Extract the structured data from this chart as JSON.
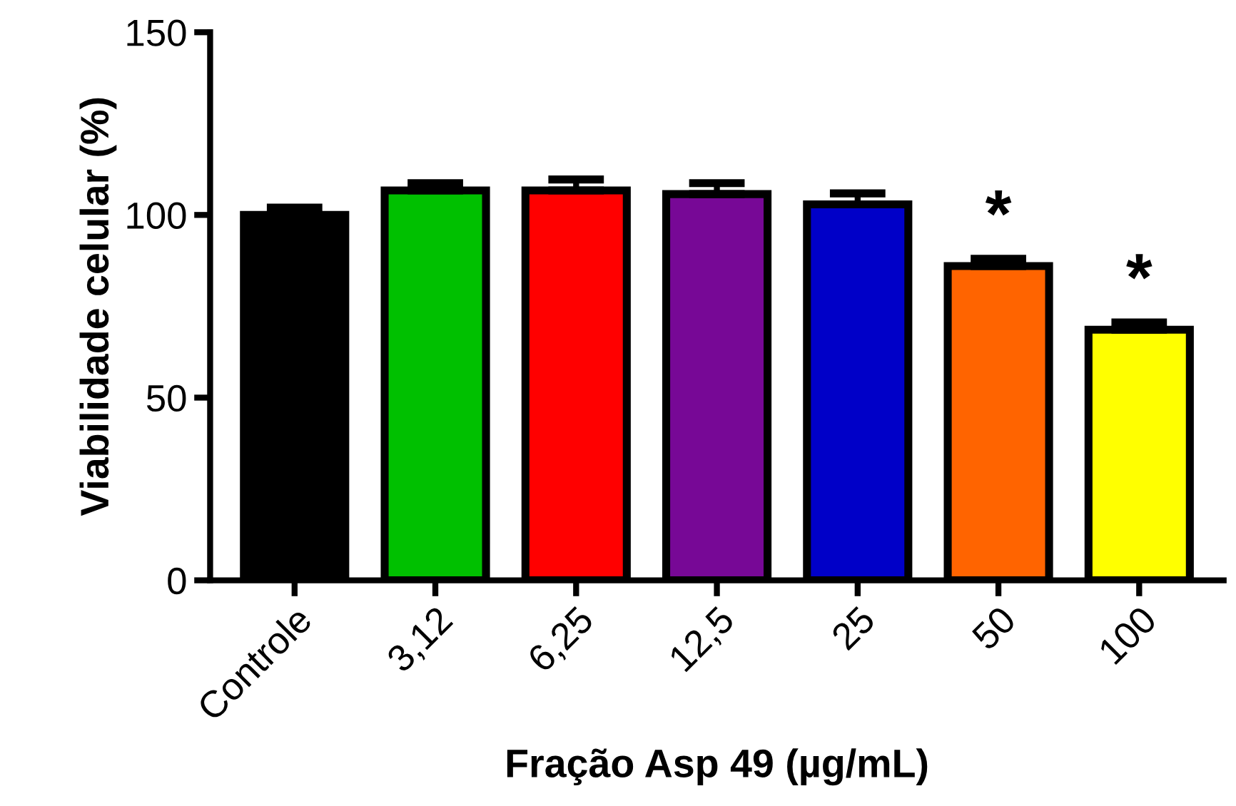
{
  "chart_data": {
    "type": "bar",
    "xlabel": "Fração Asp 49 (µg/mL)",
    "ylabel": "Viabilidade celular (%)",
    "categories": [
      "Controle",
      "3,12",
      "6,25",
      "12,5",
      "25",
      "50",
      "100"
    ],
    "values": [
      100,
      106.7,
      106.7,
      105.7,
      102.9,
      86,
      68.6
    ],
    "errors": [
      2,
      2,
      3,
      3,
      3,
      2,
      2
    ],
    "colors": [
      "#000000",
      "#00c000",
      "#ff0000",
      "#770896",
      "#0000c8",
      "#ff6400",
      "#ffff00"
    ],
    "ylim": [
      0,
      150
    ],
    "yticks": [
      0,
      50,
      100,
      150
    ],
    "grid": false,
    "annotations": [
      "*",
      "*"
    ]
  }
}
